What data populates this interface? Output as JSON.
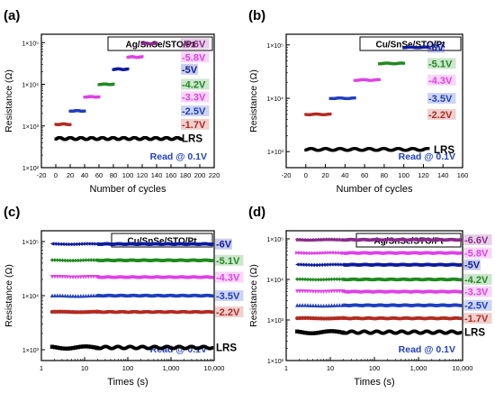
{
  "colors": {
    "LRS": "#000000",
    "-1.7V": "#b22a20",
    "-2.2V": "#b22a20",
    "-2.5V": "#1f3fbf",
    "-3.3V": "#e040e8",
    "-3.5V": "#1f3fbf",
    "-4.2V": "#1e8a1e",
    "-4.3V": "#e040e8",
    "-5V": "#0d1b9e",
    "-5.1V": "#1e8a1e",
    "-5.8V": "#e040e8",
    "-6V": "#0d1b9e",
    "-6.6V": "#8b2a8b"
  },
  "chart_data": [
    {
      "panel": "(a)",
      "type": "scatter",
      "title": "Ag/SnSe/STO/Pt",
      "xlabel": "Number of cycles",
      "ylabel": "Resistance (Ω)",
      "xlim": [
        -20,
        220
      ],
      "xticks": [
        "-20",
        "0",
        "20",
        "40",
        "60",
        "80",
        "100",
        "120",
        "140",
        "160",
        "180",
        "200",
        "220"
      ],
      "ylim_log10": [
        2,
        5.2
      ],
      "ytick_labels": [
        "1×10²",
        "1×10³",
        "1×10⁴",
        "1×10⁵"
      ],
      "annotation": "Read @ 0.1V",
      "series": [
        {
          "name": "LRS",
          "x_range": [
            0,
            175
          ],
          "y": 500
        },
        {
          "name": "-1.7V",
          "x_range": [
            0,
            20
          ],
          "y": 1100
        },
        {
          "name": "-2.5V",
          "x_range": [
            20,
            40
          ],
          "y": 2300
        },
        {
          "name": "-3.3V",
          "x_range": [
            40,
            60
          ],
          "y": 5000
        },
        {
          "name": "-4.2V",
          "x_range": [
            60,
            80
          ],
          "y": 10000
        },
        {
          "name": "-5V",
          "x_range": [
            80,
            100
          ],
          "y": 23000
        },
        {
          "name": "-5.8V",
          "x_range": [
            100,
            120
          ],
          "y": 45000
        },
        {
          "name": "-6.6V",
          "x_range": [
            120,
            140
          ],
          "y": 95000
        }
      ]
    },
    {
      "panel": "(b)",
      "type": "scatter",
      "title": "Cu/SnSe/STO/Pt",
      "xlabel": "Number of cycles",
      "ylabel": "Resistance (Ω)",
      "xlim": [
        -20,
        160
      ],
      "xticks": [
        "-20",
        "0",
        "20",
        "40",
        "60",
        "80",
        "100",
        "120",
        "140",
        "160"
      ],
      "ylim_log10": [
        2.7,
        5.2
      ],
      "ytick_labels": [
        "1×10³",
        "1×10⁴",
        "1×10⁵"
      ],
      "annotation": "Read @ 0.1V",
      "series": [
        {
          "name": "LRS",
          "x_range": [
            0,
            125
          ],
          "y": 1100
        },
        {
          "name": "-2.2V",
          "x_range": [
            0,
            25
          ],
          "y": 5000
        },
        {
          "name": "-3.5V",
          "x_range": [
            25,
            50
          ],
          "y": 10000
        },
        {
          "name": "-4.3V",
          "x_range": [
            50,
            75
          ],
          "y": 22000
        },
        {
          "name": "-5.1V",
          "x_range": [
            75,
            100
          ],
          "y": 45000
        },
        {
          "name": "-6V",
          "x_range": [
            100,
            125
          ],
          "y": 90000
        }
      ]
    },
    {
      "panel": "(c)",
      "type": "scatter",
      "title": "Cu/SnSe/STO/Pt",
      "xlabel": "Times (s)",
      "ylabel": "Resistance (Ω)",
      "xscale": "log",
      "xlim": [
        1,
        10000
      ],
      "xticks": [
        "1",
        "10",
        "100",
        "1,000",
        "10,000"
      ],
      "ylim_log10": [
        2.8,
        5.2
      ],
      "ytick_labels": [
        "1×10³",
        "1×10⁴",
        "1×10⁵"
      ],
      "annotation": "Read @ 0.1V",
      "series": [
        {
          "name": "LRS",
          "y": 1100,
          "marker": "square"
        },
        {
          "name": "-2.2V",
          "y": 5000,
          "marker": "circle"
        },
        {
          "name": "-3.5V",
          "y": 10000,
          "marker": "triangle-up"
        },
        {
          "name": "-4.3V",
          "y": 22000,
          "marker": "triangle-down"
        },
        {
          "name": "-5.1V",
          "y": 45000,
          "marker": "diamond"
        },
        {
          "name": "-6V",
          "y": 90000,
          "marker": "triangle-left"
        }
      ]
    },
    {
      "panel": "(d)",
      "type": "scatter",
      "title": "Ag/SnSe/STO/Pt",
      "xlabel": "Times (s)",
      "ylabel": "Resistance (Ω)",
      "xscale": "log",
      "xlim": [
        1,
        10000
      ],
      "xticks": [
        "1",
        "10",
        "100",
        "1,000",
        "10,000"
      ],
      "ylim_log10": [
        2,
        5.2
      ],
      "ytick_labels": [
        "1×10²",
        "1×10³",
        "1×10⁴",
        "1×10⁵"
      ],
      "annotation": "Read @ 0.1V",
      "series": [
        {
          "name": "LRS",
          "y": 500,
          "marker": "square"
        },
        {
          "name": "-1.7V",
          "y": 1100,
          "marker": "circle"
        },
        {
          "name": "-2.5V",
          "y": 2300,
          "marker": "triangle-up"
        },
        {
          "name": "-3.3V",
          "y": 5000,
          "marker": "triangle-down"
        },
        {
          "name": "-4.2V",
          "y": 10000,
          "marker": "diamond"
        },
        {
          "name": "-5V",
          "y": 23000,
          "marker": "triangle-left"
        },
        {
          "name": "-5.8V",
          "y": 45000,
          "marker": "triangle-right"
        },
        {
          "name": "-6.6V",
          "y": 95000,
          "marker": "pentagon"
        }
      ]
    }
  ]
}
